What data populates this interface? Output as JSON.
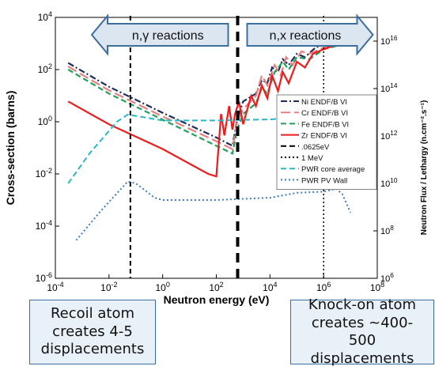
{
  "chart_data": {
    "type": "line",
    "xlabel": "Neutron energy (eV)",
    "ylabel": "Cross-section (barns)",
    "y2label": "Neutron Flux / Lethargy (n.cm⁻².s⁻¹)",
    "xscale": "log",
    "yscale": "log",
    "xlim": [
      0.0001,
      100000000
    ],
    "ylim": [
      1e-06,
      10000
    ],
    "y2lim": [
      1000000,
      100000000000000000
    ],
    "x_ticks": [
      {
        "value": 0.0001,
        "base": "10",
        "exp": "-4"
      },
      {
        "value": 0.01,
        "base": "10",
        "exp": "-2"
      },
      {
        "value": 1,
        "base": "10",
        "exp": "0"
      },
      {
        "value": 100,
        "base": "10",
        "exp": "2"
      },
      {
        "value": 10000,
        "base": "10",
        "exp": "4"
      },
      {
        "value": 1000000,
        "base": "10",
        "exp": "6"
      },
      {
        "value": 100000000,
        "base": "10",
        "exp": "8"
      }
    ],
    "y_ticks": [
      {
        "value": 1e-06,
        "base": "10",
        "exp": "-6"
      },
      {
        "value": 0.0001,
        "base": "10",
        "exp": "-4"
      },
      {
        "value": 0.01,
        "base": "10",
        "exp": "-2"
      },
      {
        "value": 1,
        "base": "10",
        "exp": "0"
      },
      {
        "value": 100,
        "base": "10",
        "exp": "2"
      },
      {
        "value": 10000,
        "base": "10",
        "exp": "4"
      }
    ],
    "y2_ticks": [
      {
        "value": 1000000,
        "base": "10",
        "exp": "6"
      },
      {
        "value": 100000000,
        "base": "10",
        "exp": "8"
      },
      {
        "value": 10000000000,
        "base": "10",
        "exp": "10"
      },
      {
        "value": 1000000000000,
        "base": "10",
        "exp": "12"
      },
      {
        "value": 100000000000000,
        "base": "10",
        "exp": "14"
      },
      {
        "value": 10000000000000000,
        "base": "10",
        "exp": "16"
      }
    ],
    "series": [
      {
        "name": "Ni ENDF/B VI",
        "axis": "y",
        "color": "#1f2d5c",
        "style": "dashdot",
        "points": [
          [
            0.0003,
            180
          ],
          [
            0.01,
            22
          ],
          [
            1,
            2.2
          ],
          [
            100,
            0.25
          ],
          [
            400,
            0.12
          ],
          [
            600,
            1.2
          ],
          [
            1000,
            6
          ],
          [
            3000,
            12
          ],
          [
            5000,
            40
          ],
          [
            8000,
            30
          ],
          [
            12000,
            120
          ],
          [
            20000,
            80
          ],
          [
            30000,
            250
          ],
          [
            50000,
            150
          ],
          [
            100000,
            400
          ],
          [
            200000,
            300
          ],
          [
            500000,
            700
          ],
          [
            1000000,
            900
          ],
          [
            2000000,
            1000
          ],
          [
            6000000,
            1200
          ]
        ]
      },
      {
        "name": "Cr ENDF/B VI",
        "axis": "y",
        "color": "#e88080",
        "style": "longdash",
        "points": [
          [
            0.0003,
            130
          ],
          [
            0.01,
            16
          ],
          [
            1,
            1.6
          ],
          [
            100,
            0.18
          ],
          [
            400,
            0.09
          ],
          [
            600,
            1
          ],
          [
            1000,
            3
          ],
          [
            3000,
            10
          ],
          [
            5000,
            60
          ],
          [
            8000,
            25
          ],
          [
            15000,
            150
          ],
          [
            25000,
            60
          ],
          [
            40000,
            300
          ],
          [
            70000,
            150
          ],
          [
            150000,
            500
          ],
          [
            300000,
            400
          ],
          [
            700000,
            600
          ],
          [
            2000000,
            900
          ],
          [
            6000000,
            1100
          ]
        ]
      },
      {
        "name": "Fe ENDF/B VI",
        "axis": "y",
        "color": "#21a05a",
        "style": "dash",
        "points": [
          [
            0.0003,
            100
          ],
          [
            0.01,
            12
          ],
          [
            1,
            1.2
          ],
          [
            100,
            0.12
          ],
          [
            400,
            0.06
          ],
          [
            600,
            0.5
          ],
          [
            1000,
            2
          ],
          [
            3000,
            5
          ],
          [
            5000,
            20
          ],
          [
            8000,
            12
          ],
          [
            15000,
            80
          ],
          [
            30000,
            200
          ],
          [
            50000,
            100
          ],
          [
            100000,
            300
          ],
          [
            300000,
            250
          ],
          [
            1000000,
            600
          ],
          [
            3000000,
            800
          ],
          [
            6000000,
            1000
          ]
        ]
      },
      {
        "name": "Zr ENDF/B VI",
        "axis": "y",
        "color": "#ec1c1c",
        "style": "solid",
        "points": [
          [
            0.0003,
            6
          ],
          [
            0.01,
            0.8
          ],
          [
            1,
            0.09
          ],
          [
            50,
            0.01
          ],
          [
            100,
            0.008
          ],
          [
            150,
            2
          ],
          [
            200,
            0.3
          ],
          [
            300,
            4
          ],
          [
            400,
            0.5
          ],
          [
            500,
            2
          ],
          [
            700,
            6
          ],
          [
            1000,
            0.8
          ],
          [
            2000,
            10
          ],
          [
            3000,
            4
          ],
          [
            5000,
            25
          ],
          [
            8000,
            8
          ],
          [
            12000,
            60
          ],
          [
            20000,
            15
          ],
          [
            30000,
            80
          ],
          [
            50000,
            30
          ],
          [
            100000,
            200
          ],
          [
            200000,
            120
          ],
          [
            400000,
            400
          ],
          [
            1000000,
            600
          ],
          [
            3000000,
            900
          ],
          [
            6000000,
            1100
          ]
        ]
      },
      {
        "name": "PWR core average",
        "axis": "y2",
        "color": "#29b6c6",
        "style": "dash",
        "points": [
          [
            0.0003,
            10000000000
          ],
          [
            0.002,
            200000000000
          ],
          [
            0.02,
            4000000000000
          ],
          [
            0.05,
            8000000000000
          ],
          [
            0.1,
            7000000000000
          ],
          [
            1,
            4500000000000
          ],
          [
            100,
            4500000000000
          ],
          [
            10000,
            5000000000000
          ],
          [
            100000,
            6000000000000
          ],
          [
            500000,
            8000000000000
          ],
          [
            2000000,
            10000000000000
          ],
          [
            5000000,
            4000000000000
          ],
          [
            10000000,
            1500000000000
          ]
        ]
      },
      {
        "name": "PWR PV Wall",
        "axis": "y2",
        "color": "#3a7bbf",
        "style": "dot",
        "points": [
          [
            0.0006,
            40000000
          ],
          [
            0.005,
            700000000
          ],
          [
            0.05,
            12000000000
          ],
          [
            0.1,
            10000000000
          ],
          [
            0.5,
            2500000000
          ],
          [
            1,
            2000000000
          ],
          [
            100,
            2000000000
          ],
          [
            10000,
            2500000000
          ],
          [
            100000,
            4000000000
          ],
          [
            1000000,
            4500000000
          ],
          [
            3000000,
            6000000000
          ],
          [
            5000000,
            3500000000
          ],
          [
            10000000,
            600000000
          ]
        ]
      }
    ],
    "vlines": [
      {
        "name": ".0625eV",
        "x": 0.0625,
        "color": "#000000",
        "style": "dash",
        "width": 2
      },
      {
        "name": "",
        "x": 625,
        "color": "#000000",
        "style": "dash",
        "width": 4
      },
      {
        "name": "1 MeV",
        "x": 1000000,
        "color": "#000000",
        "style": "dot",
        "width": 1.5
      }
    ],
    "legend": {
      "position": "right",
      "entries": [
        {
          "label": "Ni ENDF/B VI",
          "color": "#1f2d5c",
          "style": "dashdot"
        },
        {
          "label": "Cr ENDF/B VI",
          "color": "#e88080",
          "style": "longdash"
        },
        {
          "label": "Fe ENDF/B VI",
          "color": "#21a05a",
          "style": "dash"
        },
        {
          "label": "Zr ENDF/B VI",
          "color": "#ec1c1c",
          "style": "solid"
        },
        {
          "label": ".0625eV",
          "color": "#000000",
          "style": "dash"
        },
        {
          "label": "1 MeV",
          "color": "#000000",
          "style": "dot"
        },
        {
          "label": "PWR core average",
          "color": "#29b6c6",
          "style": "dash"
        },
        {
          "label": "PWR PV Wall",
          "color": "#3a7bbf",
          "style": "dot"
        }
      ]
    },
    "annotations": [
      {
        "text": "n,γ reactions",
        "direction": "left",
        "x_from": 0.0625,
        "x_to": 625
      },
      {
        "text": "n,x reactions",
        "direction": "right",
        "x_from": 625,
        "x_to": 60000000
      }
    ],
    "grid": false
  },
  "boxes": {
    "left": "Recoil atom creates 4-5 displacements",
    "right": "Knock-on atom creates ~400-500 displacements"
  },
  "colors": {
    "arrow_fill": "#dce6f1",
    "arrow_stroke": "#3b6e9e",
    "axis": "#000000"
  }
}
